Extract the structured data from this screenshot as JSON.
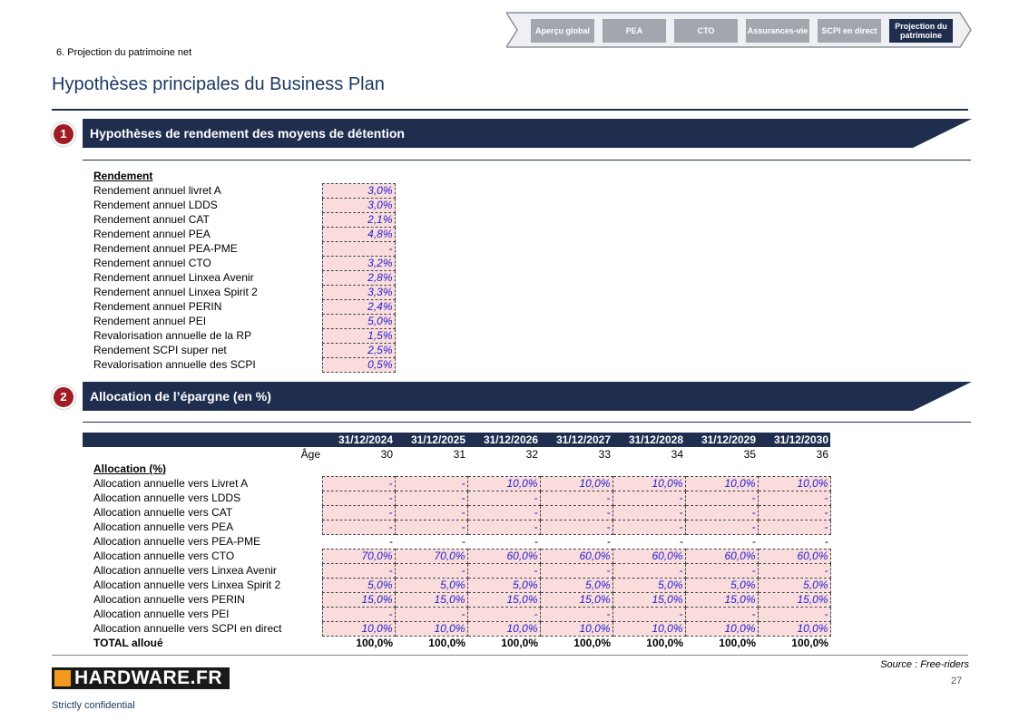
{
  "nav": [
    "Aperçu global",
    "PEA",
    "CTO",
    "Assurances-vie",
    "SCPI en direct",
    "Projection du patrimoine"
  ],
  "section_label": "6. Projection du patrimoine net",
  "title": "Hypothèses principales du Business Plan",
  "sections": [
    {
      "number": "1",
      "title": "Hypothèses de rendement des moyens de détention"
    },
    {
      "number": "2",
      "title": "Allocation de l’épargne (en %)"
    }
  ],
  "rendement": {
    "heading": "Rendement",
    "rows": [
      [
        "Rendement annuel livret A",
        "3,0%"
      ],
      [
        "Rendement annuel LDDS",
        "3,0%"
      ],
      [
        "Rendement annuel CAT",
        "2,1%"
      ],
      [
        "Rendement annuel PEA",
        "4,8%"
      ],
      [
        "Rendement annuel PEA-PME",
        "-"
      ],
      [
        "Rendement annuel CTO",
        "3,2%"
      ],
      [
        "Rendement annuel Linxea Avenir",
        "2,8%"
      ],
      [
        "Rendement annuel Linxea Spirit 2",
        "3,3%"
      ],
      [
        "Rendement annuel PERIN",
        "2,4%"
      ],
      [
        "Rendement annuel PEI",
        "5,0%"
      ],
      [
        "Revalorisation annuelle de la RP",
        "1,5%"
      ],
      [
        "Rendement SCPI super net",
        "2,5%"
      ],
      [
        "Revalorisation annuelle des SCPI",
        "0,5%"
      ]
    ]
  },
  "allocation": {
    "dates": [
      "31/12/2024",
      "31/12/2025",
      "31/12/2026",
      "31/12/2027",
      "31/12/2028",
      "31/12/2029",
      "31/12/2030"
    ],
    "age_label": "Âge",
    "ages": [
      "30",
      "31",
      "32",
      "33",
      "34",
      "35",
      "36"
    ],
    "heading": "Allocation (%)",
    "rows": [
      {
        "label": "Allocation annuelle vers Livret A",
        "values": [
          "-",
          "-",
          "10,0%",
          "10,0%",
          "10,0%",
          "10,0%",
          "10,0%"
        ]
      },
      {
        "label": "Allocation annuelle vers LDDS",
        "values": [
          "-",
          "-",
          "-",
          "-",
          "-",
          "-",
          "-"
        ]
      },
      {
        "label": "Allocation annuelle vers CAT",
        "values": [
          "-",
          "-",
          "-",
          "-",
          "-",
          "-",
          "-"
        ]
      },
      {
        "label": "Allocation annuelle vers PEA",
        "values": [
          "-",
          "-",
          "-",
          "-",
          "-",
          "-",
          "-"
        ]
      },
      {
        "label": "Allocation annuelle vers PEA-PME",
        "values": [
          "-",
          "-",
          "-",
          "-",
          "-",
          "-",
          "-"
        ]
      },
      {
        "label": "Allocation annuelle vers CTO",
        "values": [
          "70,0%",
          "70,0%",
          "60,0%",
          "60,0%",
          "60,0%",
          "60,0%",
          "60,0%"
        ]
      },
      {
        "label": "Allocation annuelle vers Linxea Avenir",
        "values": [
          "-",
          "-",
          "-",
          "-",
          "-",
          "-",
          "-"
        ]
      },
      {
        "label": "Allocation annuelle vers Linxea Spirit 2",
        "values": [
          "5,0%",
          "5,0%",
          "5,0%",
          "5,0%",
          "5,0%",
          "5,0%",
          "5,0%"
        ]
      },
      {
        "label": "Allocation annuelle vers PERIN",
        "values": [
          "15,0%",
          "15,0%",
          "15,0%",
          "15,0%",
          "15,0%",
          "15,0%",
          "15,0%"
        ]
      },
      {
        "label": "Allocation annuelle vers PEI",
        "values": [
          "-",
          "-",
          "-",
          "-",
          "-",
          "-",
          "-"
        ]
      },
      {
        "label": "Allocation annuelle vers SCPI en direct",
        "values": [
          "10,0%",
          "10,0%",
          "10,0%",
          "10,0%",
          "10,0%",
          "10,0%",
          "10,0%"
        ]
      }
    ],
    "total": {
      "label": "TOTAL alloué",
      "values": [
        "100,0%",
        "100,0%",
        "100,0%",
        "100,0%",
        "100,0%",
        "100,0%",
        "100,0%"
      ]
    }
  },
  "source": "Source : Free-riders",
  "page_number": "27",
  "logo": "HARDWARE.FR",
  "confidential": "Strictly confidential"
}
